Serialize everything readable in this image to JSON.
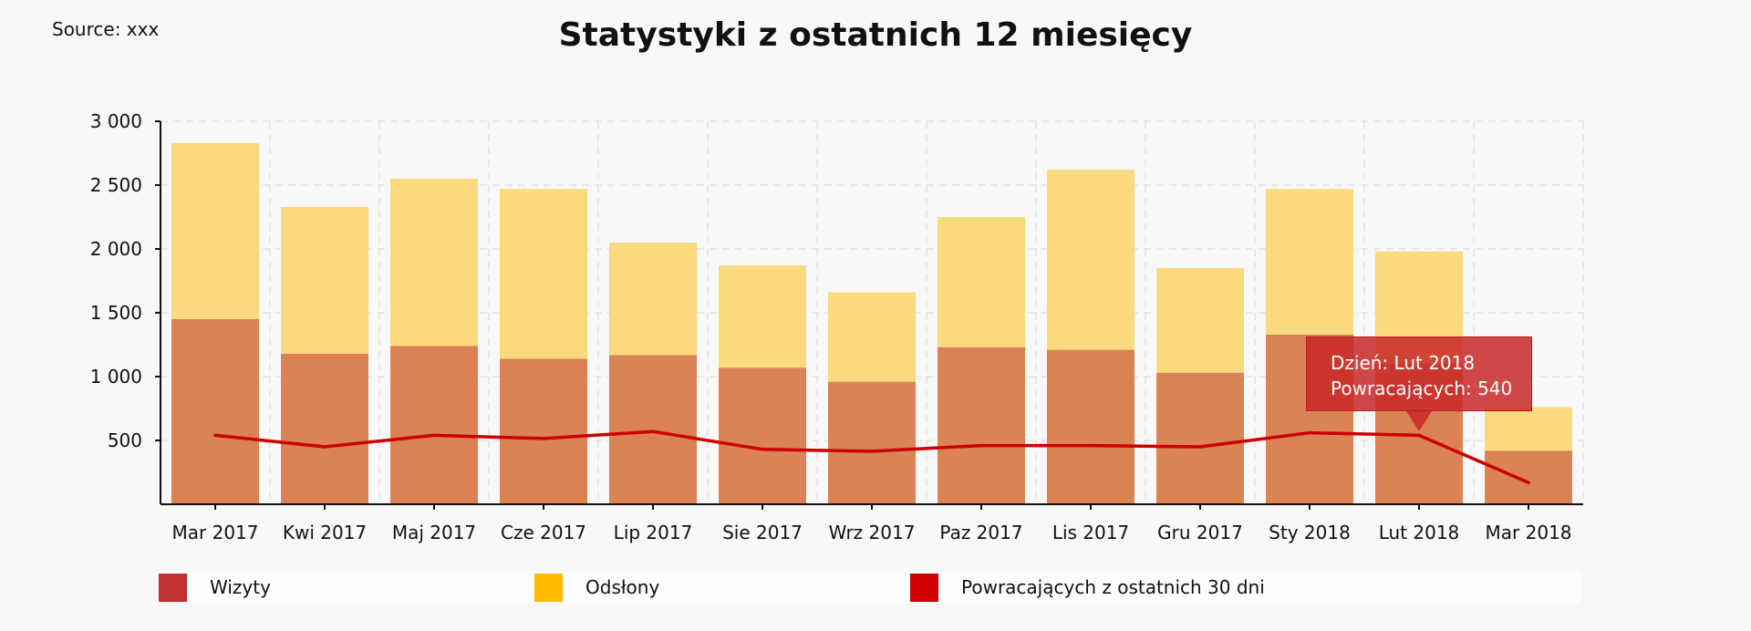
{
  "source": "Source: xxx",
  "tooltip": {
    "line1": "Dzień: Lut 2018",
    "line2": "Powracających: 540"
  },
  "colors": {
    "visits": "#dc8355",
    "views": "#fbda7d",
    "returning": "#cc0000",
    "legend_visits": "#c03030",
    "legend_views": "#ffbb00",
    "legend_returning": "#d00000",
    "grid": "#d8d8d8",
    "axis": "#111111"
  },
  "chart_data": {
    "type": "bar",
    "title": "Statystyki z ostatnich 12 miesięcy",
    "stacked": true,
    "categories": [
      "Mar 2017",
      "Kwi 2017",
      "Maj 2017",
      "Cze 2017",
      "Lip 2017",
      "Sie 2017",
      "Wrz 2017",
      "Paz 2017",
      "Lis 2017",
      "Gru 2017",
      "Sty 2018",
      "Lut 2018",
      "Mar 2018"
    ],
    "series": [
      {
        "name": "Wizyty",
        "type": "bar",
        "values": [
          1450,
          1180,
          1240,
          1140,
          1170,
          1070,
          960,
          1230,
          1210,
          1030,
          1330,
          1100,
          420
        ]
      },
      {
        "name": "Odsłony",
        "type": "bar",
        "values": [
          1380,
          1150,
          1310,
          1330,
          880,
          800,
          700,
          1020,
          1410,
          820,
          1140,
          880,
          340
        ]
      },
      {
        "name": "Powracających z ostatnich 30 dni",
        "type": "line",
        "values": [
          540,
          450,
          540,
          515,
          570,
          430,
          415,
          460,
          460,
          450,
          560,
          540,
          170
        ]
      }
    ],
    "yticks": [
      500,
      1000,
      1500,
      2000,
      2500,
      3000
    ],
    "ytick_labels": [
      "500",
      "1 000",
      "1 500",
      "2 000",
      "2 500",
      "3 000"
    ],
    "ylim": [
      0,
      3000
    ],
    "grid": true,
    "legend_position": "bottom"
  }
}
